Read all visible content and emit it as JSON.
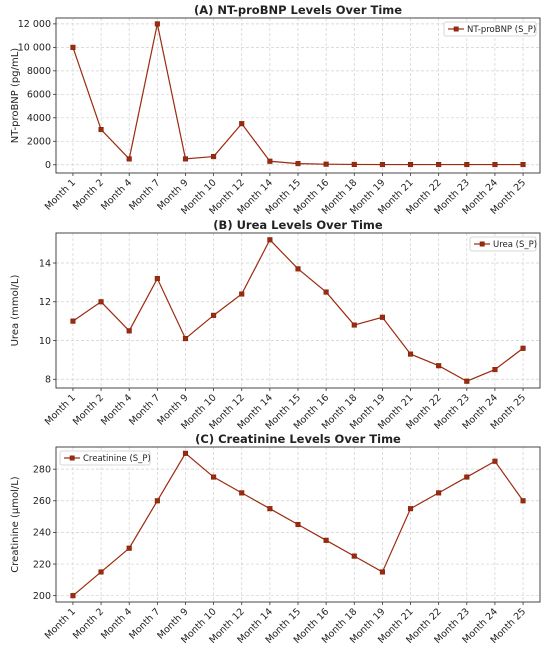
{
  "chart_data": [
    {
      "type": "line",
      "title": "(A) NT-proBNP Levels Over Time",
      "ylabel": "NT-proBNP (pg/mL)",
      "categories": [
        "Month 1",
        "Month 2",
        "Month 4",
        "Month 7",
        "Month 9",
        "Month 10",
        "Month 12",
        "Month 14",
        "Month 15",
        "Month 16",
        "Month 18",
        "Month 19",
        "Month 21",
        "Month 22",
        "Month 23",
        "Month 24",
        "Month 25"
      ],
      "series": [
        {
          "name": "NT-proBNP (S_P)",
          "values": [
            10000,
            3000,
            500,
            12000,
            500,
            700,
            3500,
            300,
            100,
            50,
            30,
            20,
            20,
            20,
            20,
            20,
            20
          ]
        }
      ],
      "ylim": [
        -700,
        12500
      ],
      "yticks": [
        0,
        2000,
        4000,
        6000,
        8000,
        10000,
        12000
      ],
      "legend": "top-right",
      "grid": true,
      "color": "#9c2a0f"
    },
    {
      "type": "line",
      "title": "(B) Urea Levels Over Time",
      "ylabel": "Urea (mmol/L)",
      "categories": [
        "Month 1",
        "Month 2",
        "Month 4",
        "Month 7",
        "Month 9",
        "Month 10",
        "Month 12",
        "Month 14",
        "Month 15",
        "Month 16",
        "Month 18",
        "Month 19",
        "Month 21",
        "Month 22",
        "Month 23",
        "Month 24",
        "Month 25"
      ],
      "series": [
        {
          "name": "Urea (S_P)",
          "values": [
            11.0,
            12.0,
            10.5,
            13.2,
            10.1,
            11.3,
            12.4,
            15.2,
            13.7,
            12.5,
            10.8,
            11.2,
            9.3,
            8.7,
            7.9,
            8.5,
            9.6
          ]
        }
      ],
      "ylim": [
        7.55,
        15.55
      ],
      "yticks": [
        8,
        10,
        12,
        14
      ],
      "legend": "top-right",
      "grid": true,
      "color": "#9c2a0f"
    },
    {
      "type": "line",
      "title": "(C) Creatinine Levels Over Time",
      "ylabel": "Creatinine (μmol/L)",
      "categories": [
        "Month 1",
        "Month 2",
        "Month 4",
        "Month 7",
        "Month 9",
        "Month 10",
        "Month 12",
        "Month 14",
        "Month 15",
        "Month 16",
        "Month 18",
        "Month 19",
        "Month 21",
        "Month 22",
        "Month 23",
        "Month 24",
        "Month 25"
      ],
      "series": [
        {
          "name": "Creatinine (S_P)",
          "values": [
            200,
            215,
            230,
            260,
            290,
            275,
            265,
            255,
            245,
            235,
            225,
            215,
            255,
            265,
            275,
            285,
            260
          ]
        }
      ],
      "ylim": [
        196,
        294
      ],
      "yticks": [
        200,
        220,
        240,
        260,
        280
      ],
      "legend": "top-left",
      "grid": true,
      "color": "#9c2a0f"
    }
  ]
}
